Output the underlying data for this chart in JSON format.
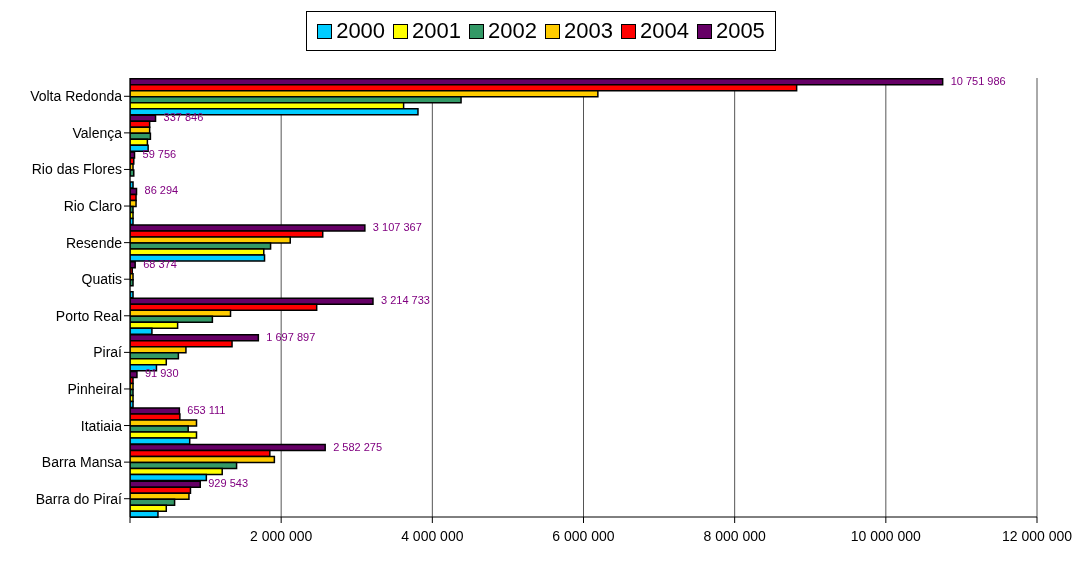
{
  "chart_data": {
    "type": "bar",
    "orientation": "horizontal",
    "categories": [
      "Volta Redonda",
      "Valença",
      "Rio das Flores",
      "Rio Claro",
      "Resende",
      "Quatis",
      "Porto Real",
      "Piraí",
      "Pinheiral",
      "Itatiaia",
      "Barra Mansa",
      "Barra do Piraí"
    ],
    "series": [
      {
        "name": "2000",
        "color": "#00ccff",
        "values": [
          3810000,
          240000,
          40000,
          40000,
          1780000,
          40000,
          290000,
          350000,
          40000,
          790000,
          1010000,
          370000
        ]
      },
      {
        "name": "2001",
        "color": "#ffff00",
        "values": [
          3620000,
          230000,
          null,
          40000,
          1770000,
          null,
          630000,
          480000,
          40000,
          880000,
          1220000,
          480000
        ]
      },
      {
        "name": "2002",
        "color": "#339966",
        "values": [
          4380000,
          270000,
          50000,
          40000,
          1860000,
          40000,
          1090000,
          640000,
          40000,
          770000,
          1410000,
          590000
        ]
      },
      {
        "name": "2003",
        "color": "#ffcc00",
        "values": [
          6190000,
          260000,
          40000,
          80000,
          2120000,
          40000,
          1330000,
          740000,
          40000,
          880000,
          1910000,
          780000
        ]
      },
      {
        "name": "2004",
        "color": "#ff0000",
        "values": [
          8820000,
          260000,
          50000,
          80000,
          2550000,
          30000,
          2470000,
          1350000,
          40000,
          660000,
          1850000,
          800000
        ]
      },
      {
        "name": "2005",
        "color": "#660066",
        "values": [
          10751986,
          337846,
          59756,
          86294,
          3107367,
          68374,
          3214733,
          1697897,
          91930,
          653111,
          2582275,
          929543
        ],
        "value_labels": [
          "10 751 986",
          "337 846",
          "59 756",
          "86 294",
          "3 107 367",
          "68 374",
          "3 214 733",
          "1 697 897",
          "91 930",
          "653 111",
          "2 582 275",
          "929 543"
        ]
      }
    ],
    "xlim": [
      0,
      12000000
    ],
    "xticks": [
      {
        "value": 0,
        "label": null
      },
      {
        "value": 2000000,
        "label": "2 000 000"
      },
      {
        "value": 4000000,
        "label": "4 000 000"
      },
      {
        "value": 6000000,
        "label": "6 000 000"
      },
      {
        "value": 8000000,
        "label": "8 000 000"
      },
      {
        "value": 10000000,
        "label": "10 000 000"
      },
      {
        "value": 12000000,
        "label": "12 000 000"
      }
    ],
    "grid": "x",
    "legend": "top"
  }
}
